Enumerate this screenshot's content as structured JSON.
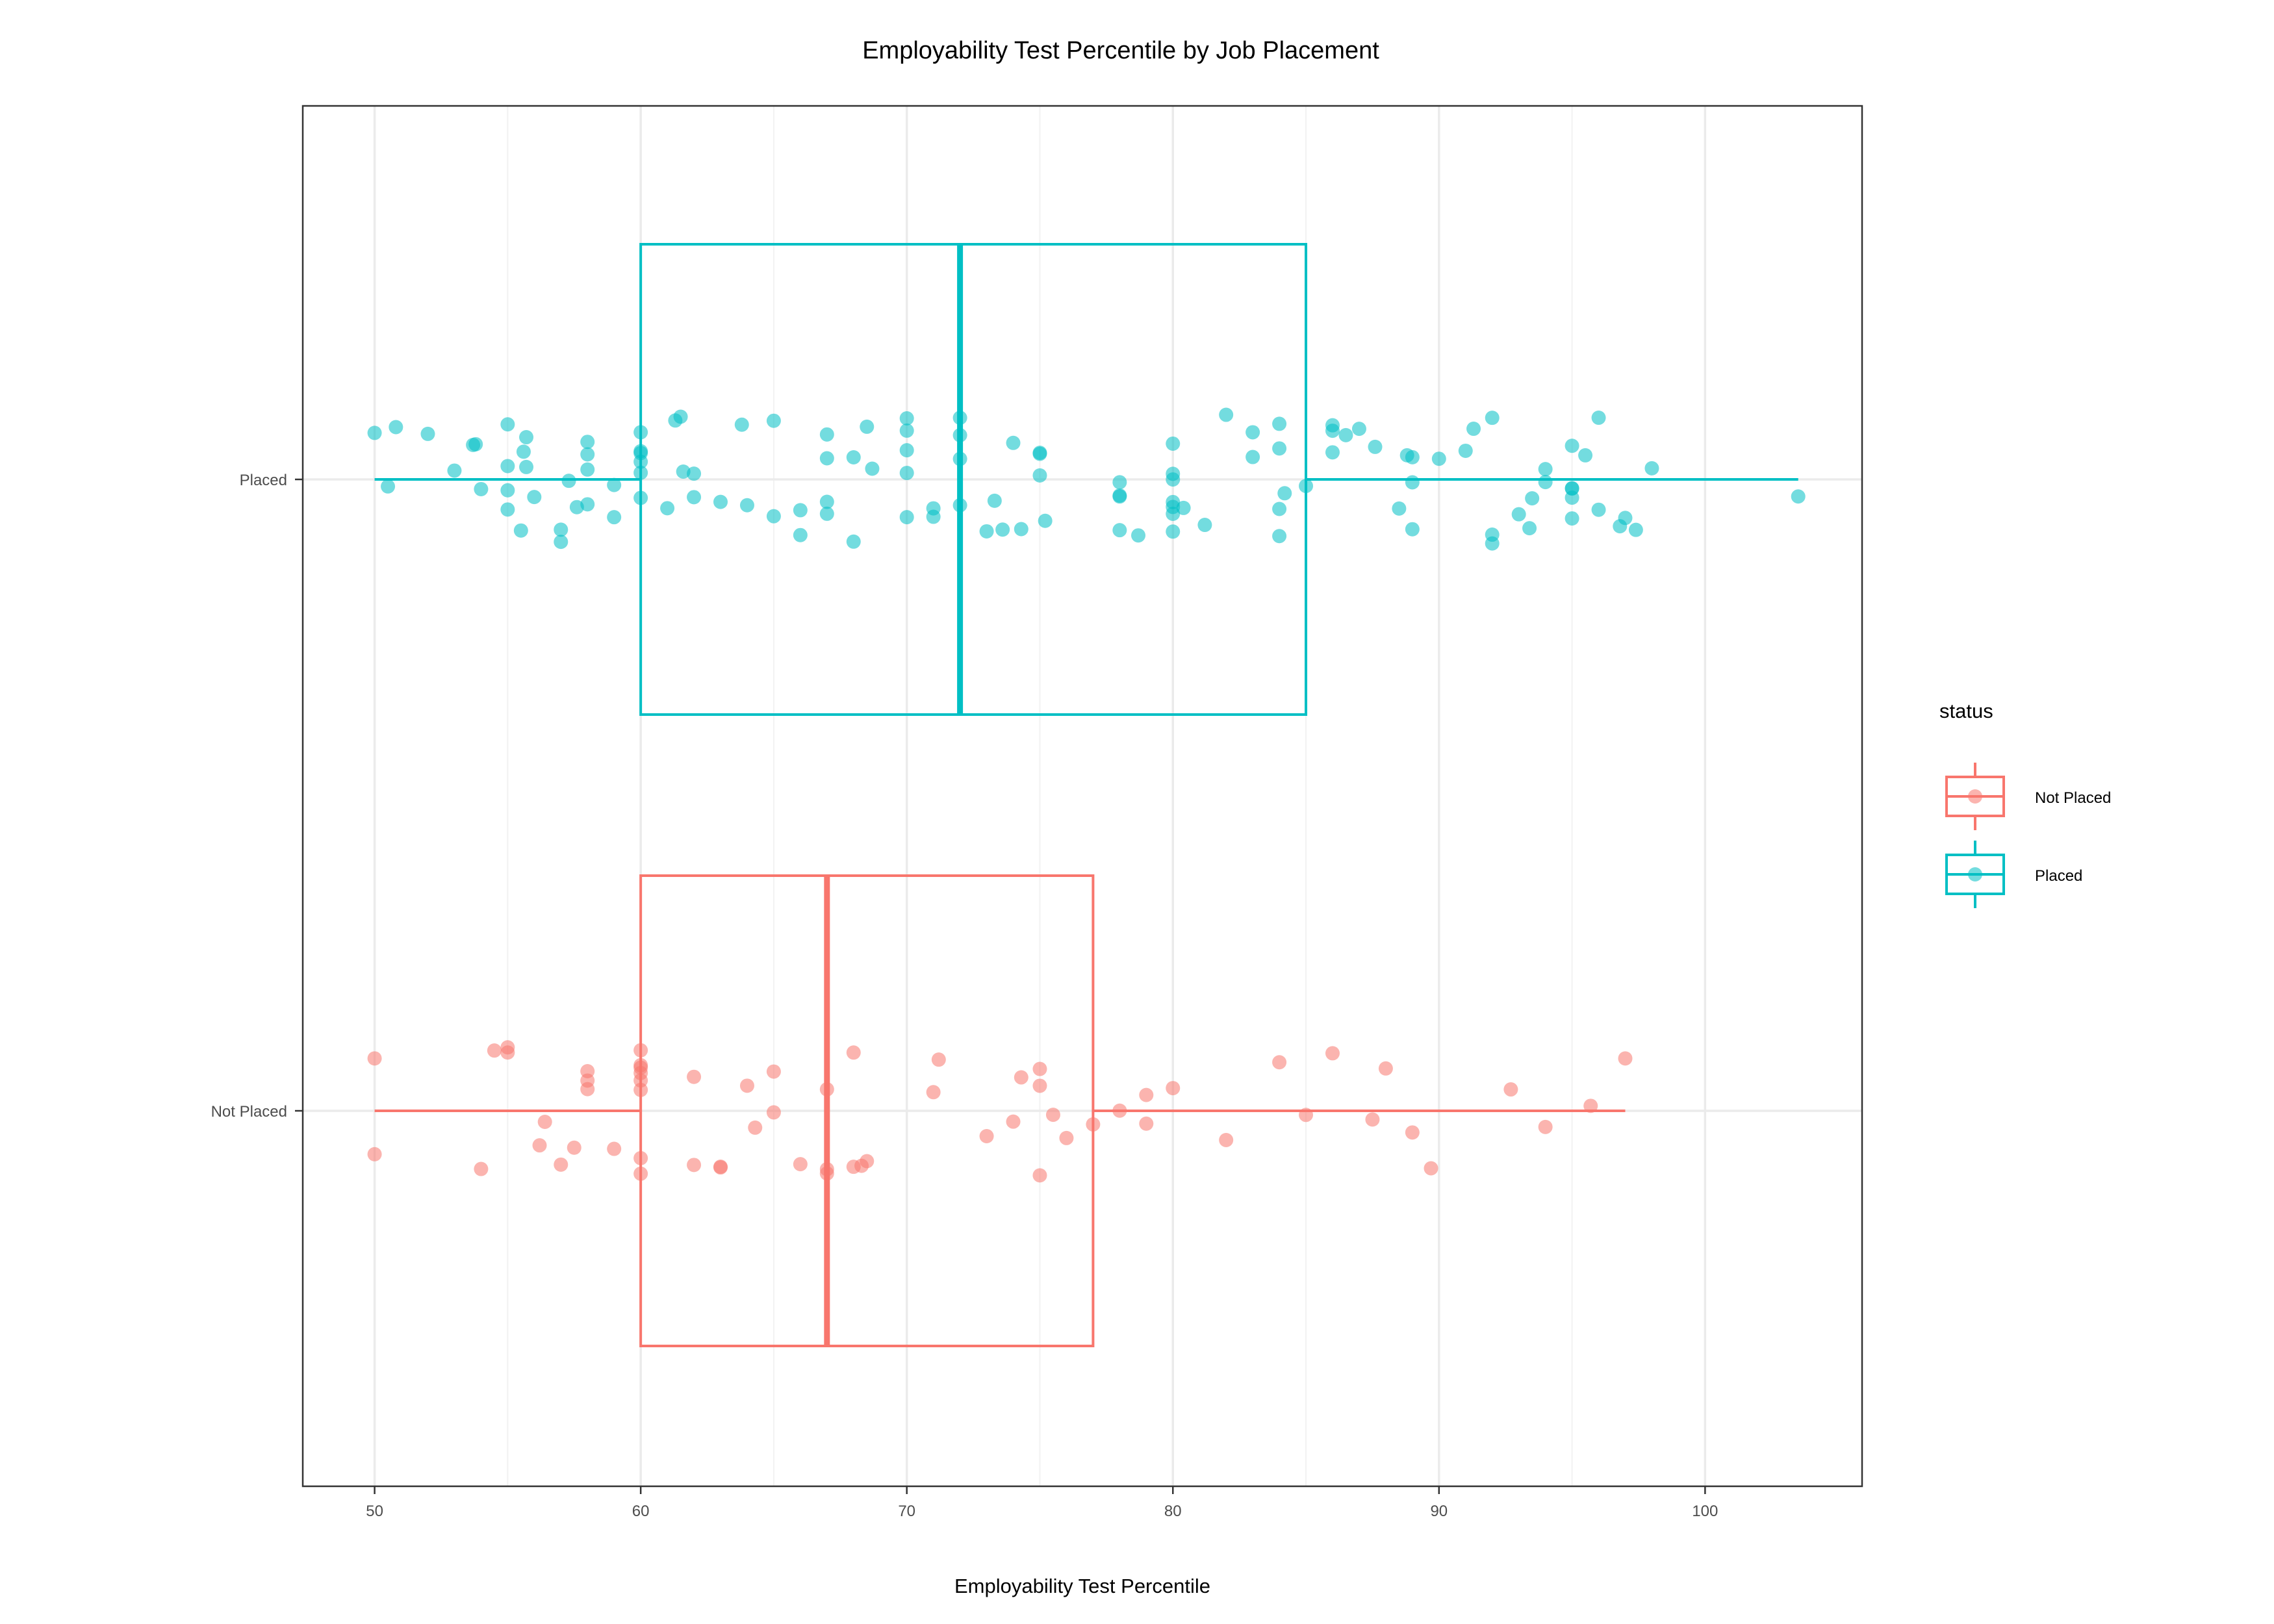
{
  "chart_data": {
    "type": "boxplot",
    "title": "Employability Test Percentile by Job Placement",
    "xlabel": "Employability Test Percentile",
    "ylabel": "",
    "xlim": [
      47.3,
      105.9
    ],
    "x_ticks": [
      50,
      60,
      70,
      80,
      90,
      100
    ],
    "x_tick_labels": [
      "50",
      "60",
      "70",
      "80",
      "90",
      "100"
    ],
    "categories": [
      "Not Placed",
      "Placed"
    ],
    "grid": true,
    "legend": {
      "title": "status",
      "position": "right",
      "entries": [
        "Not Placed",
        "Placed"
      ]
    },
    "series": [
      {
        "name": "Not Placed",
        "color": "#F8766D",
        "box": {
          "whisker_low": 50,
          "q1": 60,
          "median": 67,
          "q3": 77,
          "whisker_high": 97
        },
        "points": [
          50,
          50,
          54,
          54.5,
          55,
          55,
          56.2,
          56.4,
          57,
          57.5,
          58,
          58,
          58,
          59,
          60,
          60,
          60,
          60,
          60,
          60,
          60,
          60,
          62,
          62,
          63,
          63,
          64,
          64.3,
          65,
          65,
          66,
          67,
          67,
          67,
          68,
          68,
          68.3,
          68.5,
          71,
          71.2,
          73,
          74,
          74.3,
          75,
          75,
          75,
          75.5,
          76,
          77,
          78,
          79,
          79,
          80,
          82,
          84,
          85,
          86,
          87.5,
          88,
          89,
          89.7,
          92.7,
          94,
          95.7,
          97
        ]
      },
      {
        "name": "Placed",
        "color": "#00BFC4",
        "box": {
          "whisker_low": 50,
          "q1": 60,
          "median": 72,
          "q3": 85,
          "whisker_high": 103.5
        },
        "points": [
          50,
          50.5,
          50.8,
          52,
          53,
          53.8,
          53.7,
          54,
          55,
          55,
          55,
          55,
          55.6,
          55.5,
          55.7,
          55.7,
          56,
          57,
          57,
          57.3,
          57.6,
          58,
          58,
          58,
          58,
          59,
          59,
          60,
          60,
          60,
          60,
          60,
          60,
          61,
          61.3,
          61.5,
          61.6,
          62,
          62,
          63,
          63.8,
          64,
          65,
          65,
          66,
          66,
          67,
          67,
          67,
          67,
          68,
          68,
          68.7,
          68.5,
          70,
          70,
          70,
          70,
          70,
          71,
          71,
          72,
          72,
          72,
          72,
          73,
          73.3,
          73.6,
          74,
          74.3,
          75,
          75,
          75,
          75.2,
          78,
          78,
          78,
          78,
          78.7,
          80,
          80,
          80,
          80,
          80,
          80,
          80,
          80.4,
          81.2,
          82,
          83,
          83,
          84,
          84,
          84,
          84,
          84.2,
          85,
          86,
          86,
          86,
          86.5,
          87,
          87.6,
          88.5,
          88.8,
          89,
          89,
          89,
          90,
          91,
          91.3,
          92,
          92,
          92,
          93,
          93.4,
          93.5,
          94,
          94,
          95,
          95,
          95,
          95,
          95,
          95.5,
          96,
          96,
          96.8,
          97,
          97.4,
          98,
          103.5
        ]
      }
    ]
  }
}
